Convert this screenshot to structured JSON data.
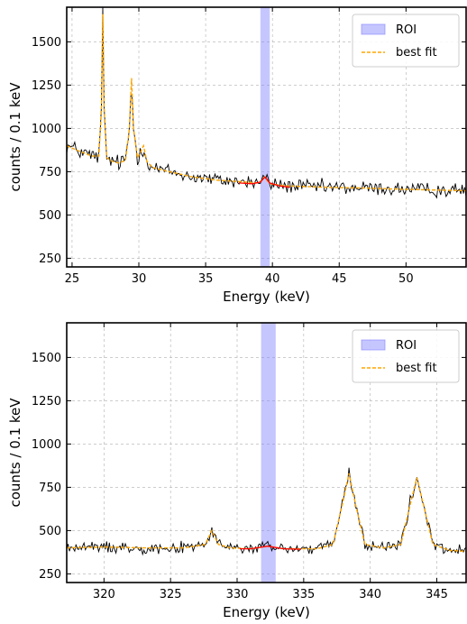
{
  "chart_data": [
    {
      "type": "line",
      "xlabel": "Energy (keV)",
      "ylabel": "counts / 0.1 keV",
      "xlim": [
        24.6,
        54.5
      ],
      "ylim": [
        200,
        1700
      ],
      "xticks": [
        "25",
        "30",
        "35",
        "40",
        "45",
        "50"
      ],
      "yticks": [
        "250",
        "500",
        "750",
        "1000",
        "1250",
        "1500"
      ],
      "grid": true,
      "legend_position": "top-right",
      "roi": [
        39.1,
        39.8
      ],
      "legend": {
        "roi_label": "ROI",
        "fit_label": "best fit"
      },
      "colors": {
        "data": "#000000",
        "fit": "#ffa500",
        "roi_fit": "#ff0000",
        "roi": "#8080ff"
      },
      "series": [
        {
          "name": "best fit",
          "x": [
            24.6,
            25.5,
            26.5,
            27.0,
            27.2,
            27.3,
            27.4,
            27.6,
            28.0,
            28.5,
            29.0,
            29.3,
            29.45,
            29.6,
            29.9,
            30.1,
            30.35,
            30.6,
            31.0,
            32.0,
            34.0,
            36.0,
            38.0,
            39.0,
            39.4,
            39.8,
            41.0,
            44.0,
            47.0,
            50.0,
            54.5
          ],
          "y": [
            900,
            870,
            840,
            840,
            1100,
            1660,
            1100,
            830,
            810,
            800,
            815,
            1000,
            1290,
            1000,
            830,
            860,
            900,
            810,
            775,
            755,
            720,
            700,
            690,
            685,
            720,
            680,
            668,
            660,
            655,
            648,
            640
          ]
        },
        {
          "name": "roi fit",
          "x": [
            37.5,
            38.5,
            39.1,
            39.45,
            39.8,
            40.5,
            41.3
          ],
          "y": [
            685,
            680,
            690,
            720,
            685,
            668,
            660
          ]
        }
      ]
    },
    {
      "type": "line",
      "xlabel": "Energy (keV)",
      "ylabel": "counts / 0.1 keV",
      "xlim": [
        317.2,
        347.2
      ],
      "ylim": [
        200,
        1700
      ],
      "xticks": [
        "320",
        "325",
        "330",
        "335",
        "340",
        "345"
      ],
      "yticks": [
        "250",
        "500",
        "750",
        "1000",
        "1250",
        "1500"
      ],
      "grid": true,
      "legend_position": "top-right",
      "roi": [
        331.8,
        332.9
      ],
      "legend": {
        "roi_label": "ROI",
        "fit_label": "best fit"
      },
      "colors": {
        "data": "#000000",
        "fit": "#ffa500",
        "roi_fit": "#ff0000",
        "roi": "#8080ff"
      },
      "series": [
        {
          "name": "best fit",
          "x": [
            317.2,
            320.0,
            323.0,
            326.0,
            327.6,
            328.1,
            328.6,
            329.5,
            331.0,
            332.3,
            333.5,
            336.0,
            337.2,
            337.9,
            338.4,
            338.9,
            339.6,
            341.0,
            342.3,
            343.0,
            343.5,
            344.0,
            344.7,
            346.0,
            347.2
          ],
          "y": [
            400,
            405,
            400,
            400,
            420,
            500,
            420,
            400,
            395,
            410,
            395,
            395,
            420,
            650,
            830,
            650,
            420,
            400,
            420,
            650,
            805,
            650,
            420,
            385,
            380
          ]
        },
        {
          "name": "roi fit",
          "x": [
            330.2,
            331.0,
            332.3,
            333.5,
            334.8
          ],
          "y": [
            395,
            395,
            410,
            395,
            392
          ]
        }
      ]
    }
  ]
}
